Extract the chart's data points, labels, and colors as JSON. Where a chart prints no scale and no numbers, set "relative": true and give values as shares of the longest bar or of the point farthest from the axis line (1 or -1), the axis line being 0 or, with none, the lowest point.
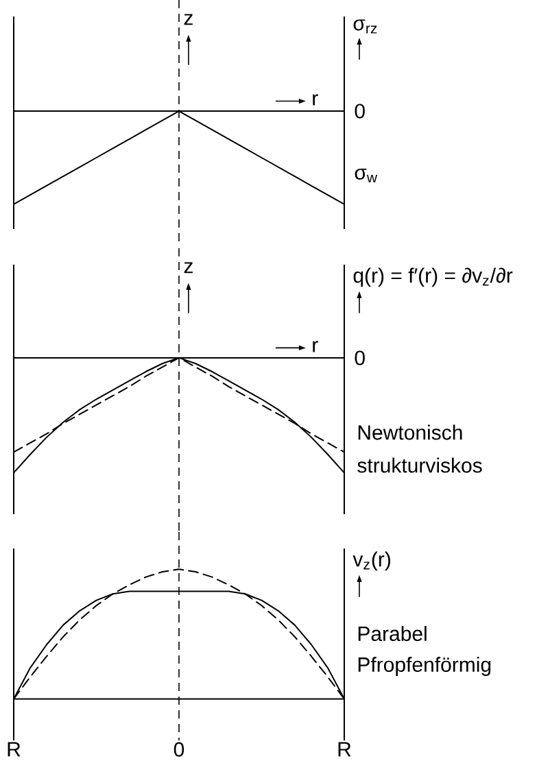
{
  "chart_data": [
    {
      "type": "line",
      "ylabel": "σ$_{rz}$",
      "xlabel": "r",
      "relative": true,
      "categories": [
        null,
        null,
        null,
        null,
        null,
        null,
        null,
        null,
        null,
        null,
        null,
        null,
        null,
        null,
        null,
        null,
        null,
        null,
        null,
        null,
        null
      ],
      "series": [
        {
          "color": "#000000",
          "line_style": "solid",
          "values": [
            -1,
            -0.9,
            -0.8,
            -0.7,
            -0.6,
            -0.5,
            -0.4,
            -0.3,
            -0.2,
            -0.1,
            0,
            -0.1,
            -0.2,
            -0.3,
            -0.4,
            -0.5,
            -0.6,
            -0.7,
            -0.8,
            -0.9,
            -1
          ]
        }
      ],
      "annotations": [
        "z",
        "0",
        "σ$_{w}$"
      ]
    },
    {
      "type": "line",
      "ylabel": "q(r) = f′(r) = ∂v$_{z}$/∂r",
      "xlabel": "r",
      "relative": true,
      "categories": [
        null,
        null,
        null,
        null,
        null,
        null,
        null,
        null,
        null,
        null,
        null,
        null,
        null,
        null,
        null,
        null,
        null,
        null,
        null,
        null,
        null
      ],
      "series": [
        {
          "name": "Newtonisch",
          "color": "#000000",
          "line_style": "dashed",
          "values": [
            -0.82,
            -0.74,
            -0.66,
            -0.57,
            -0.49,
            -0.41,
            -0.33,
            -0.25,
            -0.16,
            -0.08,
            0,
            -0.08,
            -0.16,
            -0.25,
            -0.33,
            -0.41,
            -0.49,
            -0.57,
            -0.66,
            -0.74,
            -0.82
          ]
        },
        {
          "name": "strukturviskos",
          "color": "#000000",
          "line_style": "solid",
          "values": [
            -1,
            -0.84,
            -0.69,
            -0.56,
            -0.45,
            -0.36,
            -0.28,
            -0.2,
            -0.12,
            -0.05,
            0,
            -0.05,
            -0.12,
            -0.2,
            -0.28,
            -0.36,
            -0.45,
            -0.56,
            -0.69,
            -0.84,
            -1
          ]
        }
      ],
      "annotations": [
        "z",
        "0"
      ]
    },
    {
      "type": "line",
      "ylabel": "v$_{z}$(r)",
      "relative": true,
      "categories": [
        "R",
        null,
        null,
        null,
        null,
        null,
        null,
        null,
        null,
        null,
        "0",
        null,
        null,
        null,
        null,
        null,
        null,
        null,
        null,
        null,
        "R"
      ],
      "series": [
        {
          "name": "Parabel",
          "color": "#000000",
          "line_style": "dashed",
          "values": [
            0,
            0.17,
            0.33,
            0.48,
            0.61,
            0.72,
            0.81,
            0.88,
            0.94,
            0.98,
            1,
            0.98,
            0.94,
            0.88,
            0.81,
            0.72,
            0.61,
            0.48,
            0.33,
            0.17,
            0
          ]
        },
        {
          "name": "Pfropfenförmig",
          "color": "#000000",
          "line_style": "solid",
          "values": [
            0,
            0.24,
            0.42,
            0.57,
            0.68,
            0.76,
            0.81,
            0.83,
            0.83,
            0.83,
            0.83,
            0.83,
            0.83,
            0.83,
            0.81,
            0.76,
            0.68,
            0.57,
            0.42,
            0.24,
            0
          ]
        }
      ],
      "ref_lines": [
        {
          "axis": "x",
          "value": "0",
          "line_style": "dashed",
          "color": "#000000"
        }
      ]
    }
  ]
}
